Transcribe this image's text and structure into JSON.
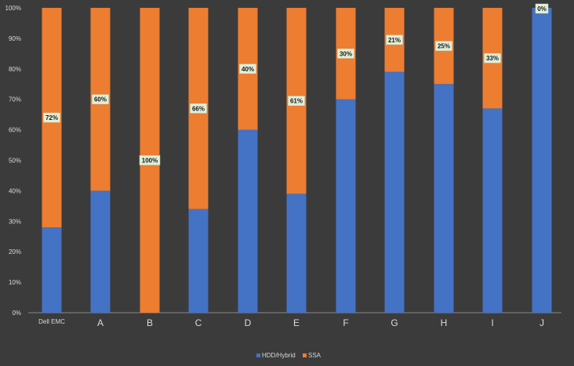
{
  "chart_data": {
    "type": "bar",
    "stacked": true,
    "percent_stacked": true,
    "categories": [
      "Dell EMC",
      "A",
      "B",
      "C",
      "D",
      "E",
      "F",
      "G",
      "H",
      "I",
      "J"
    ],
    "series": [
      {
        "name": "HDD/Hybrid",
        "color": "#4472c4",
        "values": [
          28,
          40,
          0,
          34,
          60,
          39,
          70,
          79,
          75,
          67,
          100
        ]
      },
      {
        "name": "SSA",
        "color": "#ed7d31",
        "values": [
          72,
          60,
          100,
          66,
          40,
          61,
          30,
          21,
          25,
          33,
          0
        ]
      }
    ],
    "data_labels": [
      "72%",
      "60%",
      "100%",
      "66%",
      "40%",
      "61%",
      "30%",
      "21%",
      "25%",
      "33%",
      "0%"
    ],
    "y_ticks": [
      "0%",
      "10%",
      "20%",
      "30%",
      "40%",
      "50%",
      "60%",
      "70%",
      "80%",
      "90%",
      "100%"
    ],
    "ylim": [
      0,
      100
    ],
    "grid": false,
    "legend_position": "bottom",
    "title": "",
    "xlabel": "",
    "ylabel": ""
  }
}
